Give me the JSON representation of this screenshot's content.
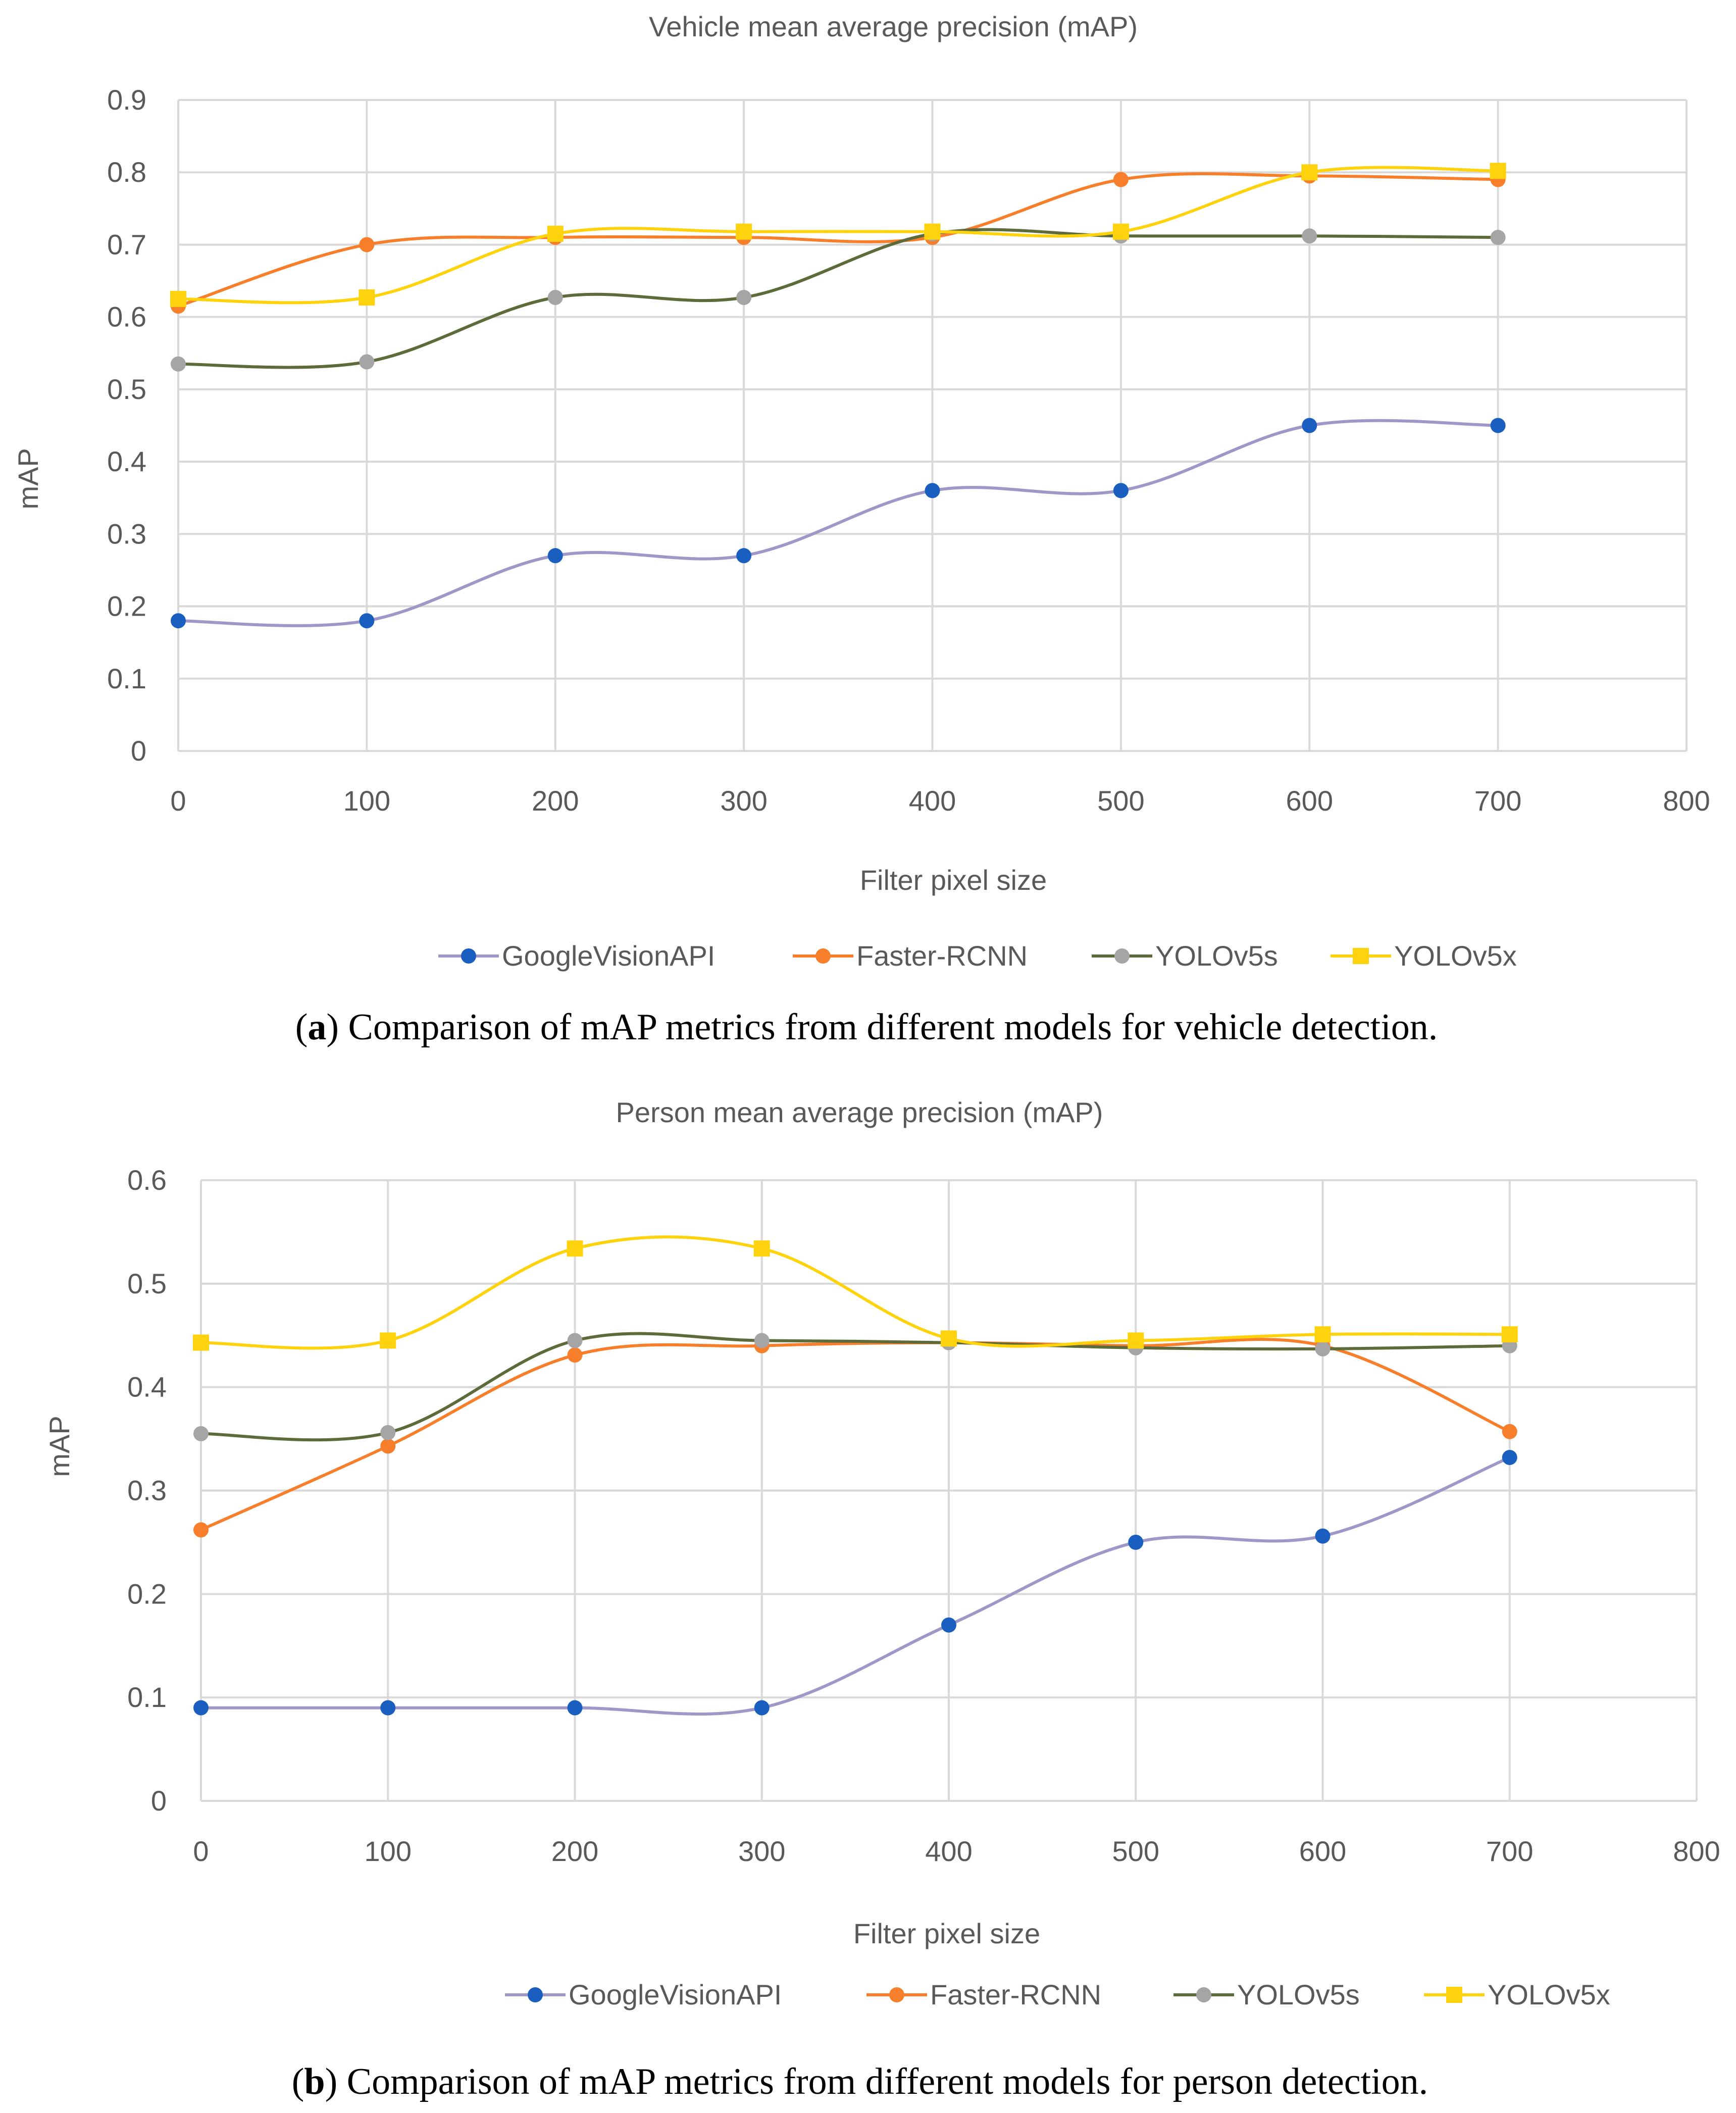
{
  "colors": {
    "GoogleVisionAPI_line": "#9d98c8",
    "GoogleVisionAPI_marker": "#1a5fc0",
    "Faster-RCNN": "#f77e2a",
    "YOLOv5s_line": "#5d6b3a",
    "YOLOv5s_marker": "#a5a5a5",
    "YOLOv5x": "#ffd20e",
    "grid": "#d9d9d9",
    "text": "#595959"
  },
  "chart_data": [
    {
      "type": "line",
      "title": "Vehicle mean average precision (mAP)",
      "xlabel": "Filter pixel size",
      "ylabel": "mAP",
      "xlim": [
        0,
        800
      ],
      "ylim": [
        0,
        0.9
      ],
      "xticks": [
        "0",
        "100",
        "200",
        "300",
        "400",
        "500",
        "600",
        "700",
        "800"
      ],
      "yticks": [
        "0",
        "0.1",
        "0.2",
        "0.3",
        "0.4",
        "0.5",
        "0.6",
        "0.7",
        "0.8",
        "0.9"
      ],
      "x": [
        0,
        100,
        200,
        300,
        400,
        500,
        600,
        700
      ],
      "grid": true,
      "legend_position": "bottom",
      "caption_label": "a",
      "caption_text": "Comparison of mAP metrics from different models for vehicle detection.",
      "series": [
        {
          "name": "GoogleVisionAPI",
          "marker": "circle",
          "values": [
            0.18,
            0.18,
            0.27,
            0.27,
            0.36,
            0.36,
            0.45,
            0.45
          ]
        },
        {
          "name": "Faster-RCNN",
          "marker": "circle",
          "values": [
            0.615,
            0.7,
            0.71,
            0.71,
            0.71,
            0.79,
            0.795,
            0.79
          ]
        },
        {
          "name": "YOLOv5s",
          "marker": "circle",
          "values": [
            0.535,
            0.538,
            0.627,
            0.627,
            0.715,
            0.712,
            0.712,
            0.71
          ]
        },
        {
          "name": "YOLOv5x",
          "marker": "square",
          "values": [
            0.625,
            0.627,
            0.715,
            0.718,
            0.718,
            0.718,
            0.8,
            0.802
          ]
        }
      ]
    },
    {
      "type": "line",
      "title": "Person mean average precision (mAP)",
      "xlabel": "Filter pixel size",
      "ylabel": "mAP",
      "xlim": [
        0,
        800
      ],
      "ylim": [
        0,
        0.6
      ],
      "xticks": [
        "0",
        "100",
        "200",
        "300",
        "400",
        "500",
        "600",
        "700",
        "800"
      ],
      "yticks": [
        "0",
        "0.1",
        "0.2",
        "0.3",
        "0.4",
        "0.5",
        "0.6"
      ],
      "x": [
        0,
        100,
        200,
        300,
        400,
        500,
        600,
        700
      ],
      "grid": true,
      "legend_position": "bottom",
      "caption_label": "b",
      "caption_text": "Comparison of mAP metrics from different models for person detection.",
      "series": [
        {
          "name": "GoogleVisionAPI",
          "marker": "circle",
          "values": [
            0.09,
            0.09,
            0.09,
            0.09,
            0.17,
            0.25,
            0.256,
            0.332
          ]
        },
        {
          "name": "Faster-RCNN",
          "marker": "circle",
          "values": [
            0.262,
            0.343,
            0.431,
            0.44,
            0.443,
            0.44,
            0.44,
            0.357
          ]
        },
        {
          "name": "YOLOv5s",
          "marker": "circle",
          "values": [
            0.355,
            0.356,
            0.445,
            0.445,
            0.443,
            0.438,
            0.437,
            0.44
          ]
        },
        {
          "name": "YOLOv5x",
          "marker": "square",
          "values": [
            0.443,
            0.445,
            0.534,
            0.534,
            0.447,
            0.445,
            0.451,
            0.451
          ]
        }
      ]
    }
  ]
}
